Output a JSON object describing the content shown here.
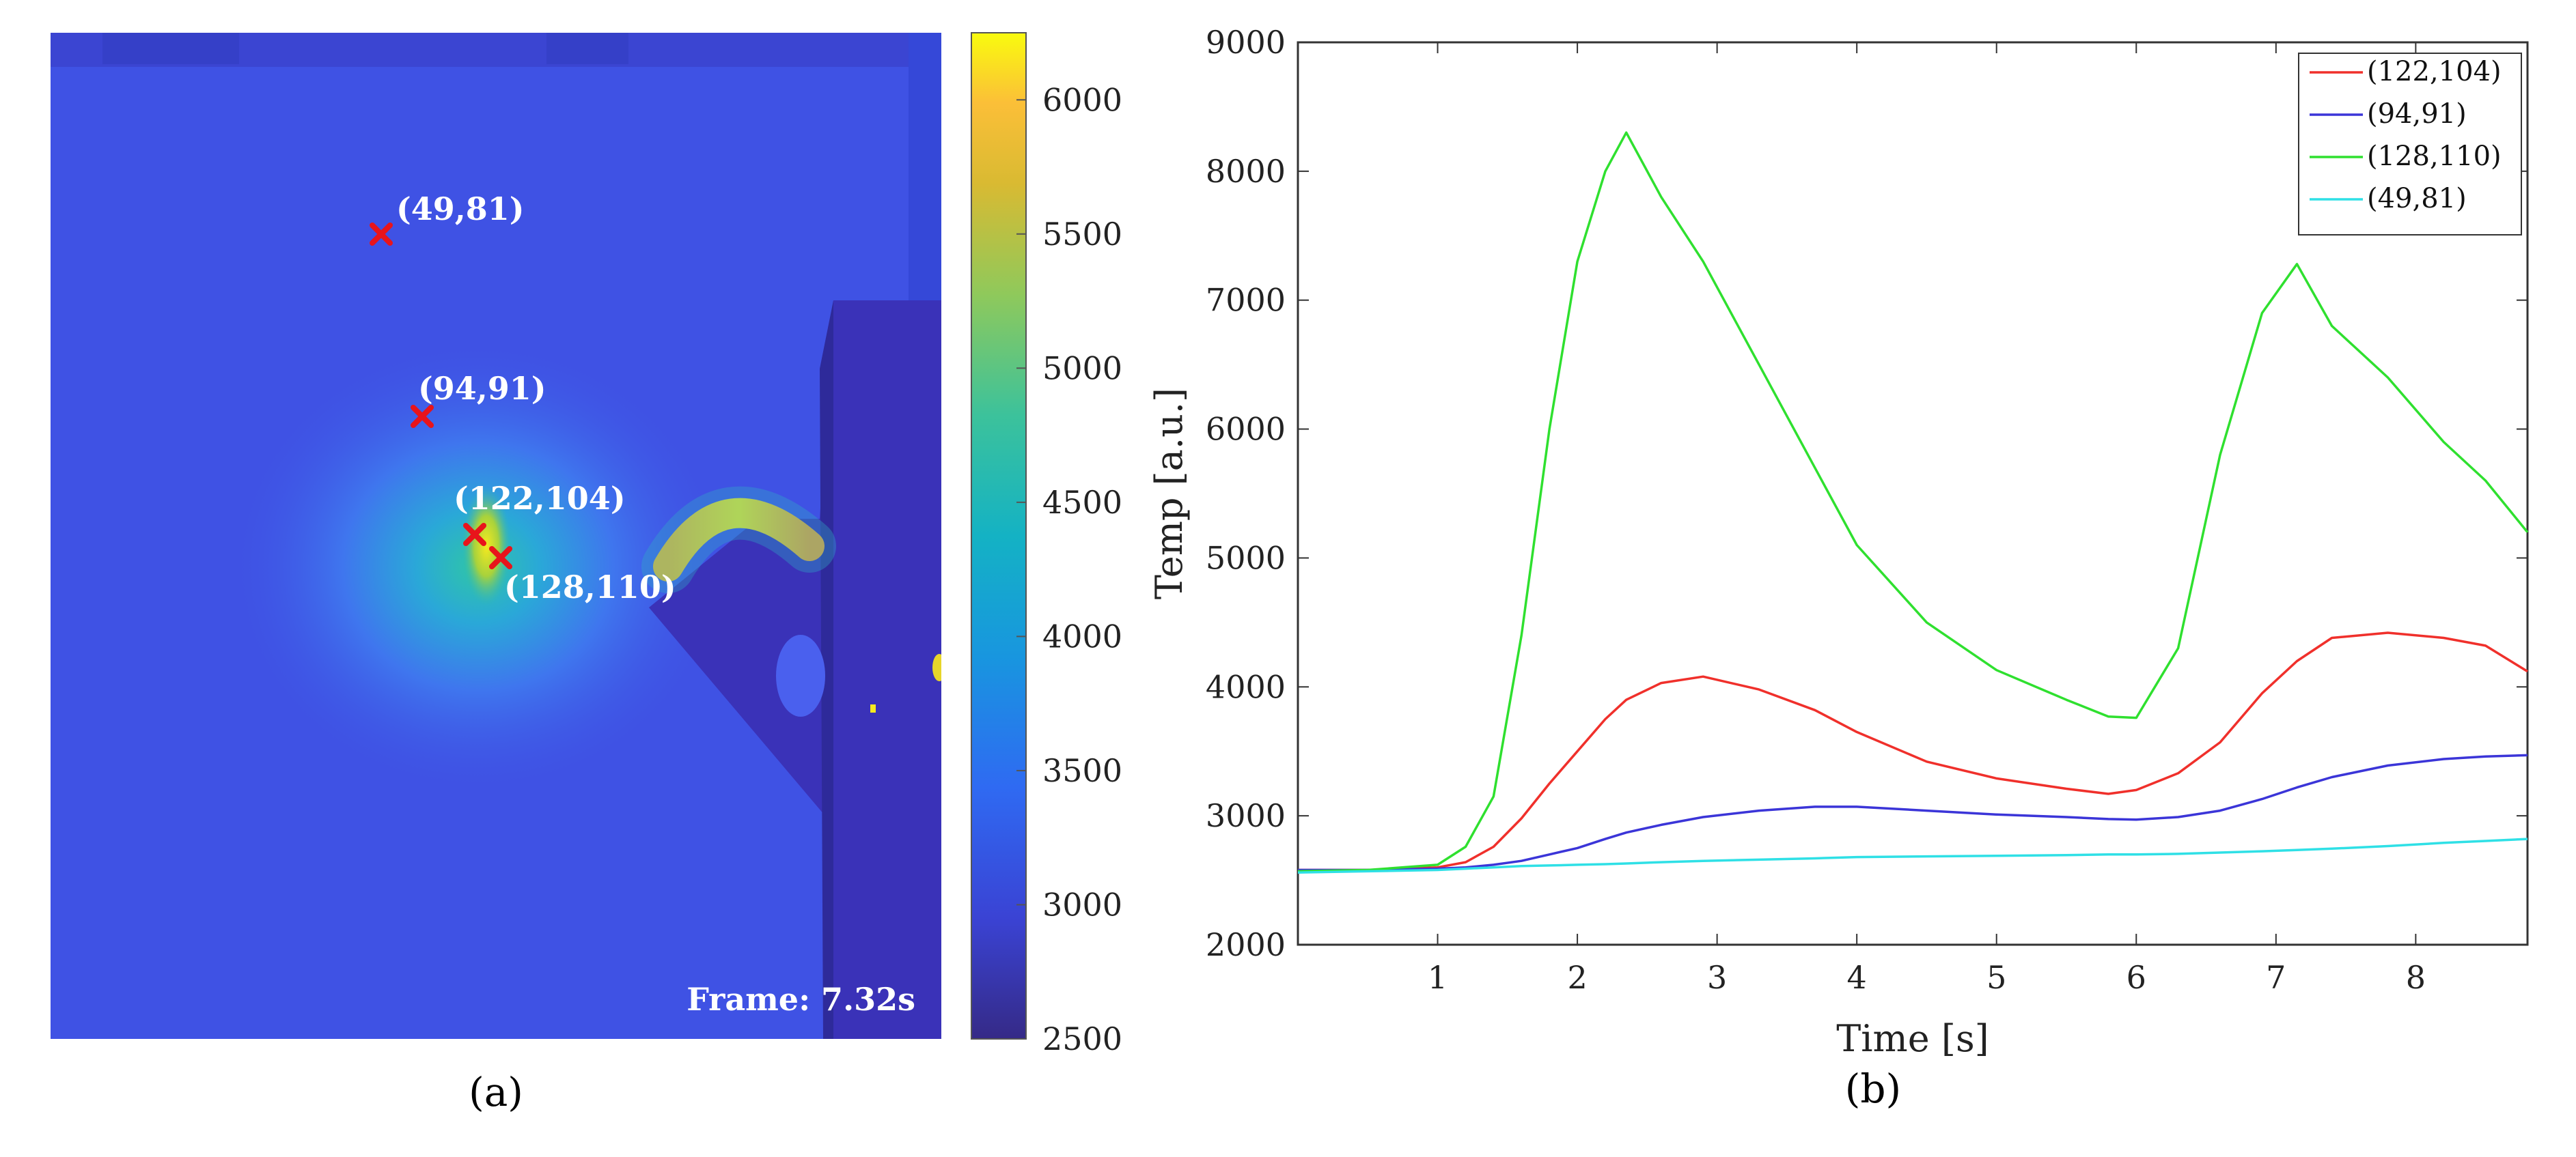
{
  "panel_a": {
    "label": "(a)",
    "frame_text": "Frame: 7.32s",
    "markers": [
      {
        "label": "(49,81)"
      },
      {
        "label": "(94,91)"
      },
      {
        "label": "(122,104)"
      },
      {
        "label": "(128,110)"
      }
    ],
    "colorbar": {
      "min": 2500,
      "max": 6250,
      "ticks": [
        "6000",
        "5500",
        "5000",
        "4500",
        "4000",
        "3500",
        "3000",
        "2500"
      ],
      "colormap": "parula"
    },
    "colors": {
      "marker": "#e8141b",
      "background": "#3f4fe6",
      "hot": "#f5e91f"
    }
  },
  "chart_data": {
    "type": "line",
    "label": "(b)",
    "xlabel": "Time [s]",
    "ylabel": "Temp [a.u.]",
    "xlim": [
      0,
      8.8
    ],
    "ylim": [
      2000,
      9000
    ],
    "x_ticks": [
      1,
      2,
      3,
      4,
      5,
      6,
      7,
      8
    ],
    "y_ticks": [
      2000,
      3000,
      4000,
      5000,
      6000,
      7000,
      8000,
      9000
    ],
    "legend_position": "top-right",
    "grid": false,
    "x": [
      0,
      0.5,
      1.0,
      1.2,
      1.4,
      1.6,
      1.8,
      2.0,
      2.2,
      2.35,
      2.6,
      2.9,
      3.3,
      3.7,
      4.0,
      4.5,
      5.0,
      5.5,
      5.8,
      6.0,
      6.3,
      6.6,
      6.9,
      7.15,
      7.4,
      7.8,
      8.2,
      8.5,
      8.8
    ],
    "series": [
      {
        "name": "(122,104)",
        "color": "#f0302b",
        "values": [
          2580,
          2580,
          2600,
          2640,
          2760,
          2980,
          3250,
          3500,
          3750,
          3900,
          4030,
          4080,
          3980,
          3820,
          3650,
          3420,
          3290,
          3210,
          3170,
          3200,
          3330,
          3570,
          3950,
          4200,
          4380,
          4420,
          4380,
          4320,
          4120
        ]
      },
      {
        "name": "(94,91)",
        "color": "#3b35d8",
        "values": [
          2580,
          2580,
          2590,
          2600,
          2620,
          2650,
          2700,
          2750,
          2820,
          2870,
          2930,
          2990,
          3040,
          3070,
          3070,
          3040,
          3010,
          2990,
          2975,
          2970,
          2990,
          3040,
          3130,
          3220,
          3300,
          3390,
          3440,
          3460,
          3470
        ]
      },
      {
        "name": "(128,110)",
        "color": "#2fe02f",
        "values": [
          2570,
          2580,
          2620,
          2760,
          3150,
          4400,
          6000,
          7300,
          8000,
          8300,
          7800,
          7300,
          6500,
          5700,
          5100,
          4500,
          4130,
          3900,
          3770,
          3760,
          4300,
          5800,
          6900,
          7280,
          6800,
          6400,
          5900,
          5600,
          5200
        ]
      },
      {
        "name": "(49,81)",
        "color": "#2fe0e6",
        "values": [
          2560,
          2570,
          2580,
          2590,
          2600,
          2610,
          2615,
          2620,
          2625,
          2630,
          2640,
          2650,
          2660,
          2670,
          2680,
          2685,
          2690,
          2695,
          2700,
          2700,
          2705,
          2715,
          2725,
          2735,
          2745,
          2765,
          2790,
          2805,
          2820
        ]
      }
    ]
  }
}
